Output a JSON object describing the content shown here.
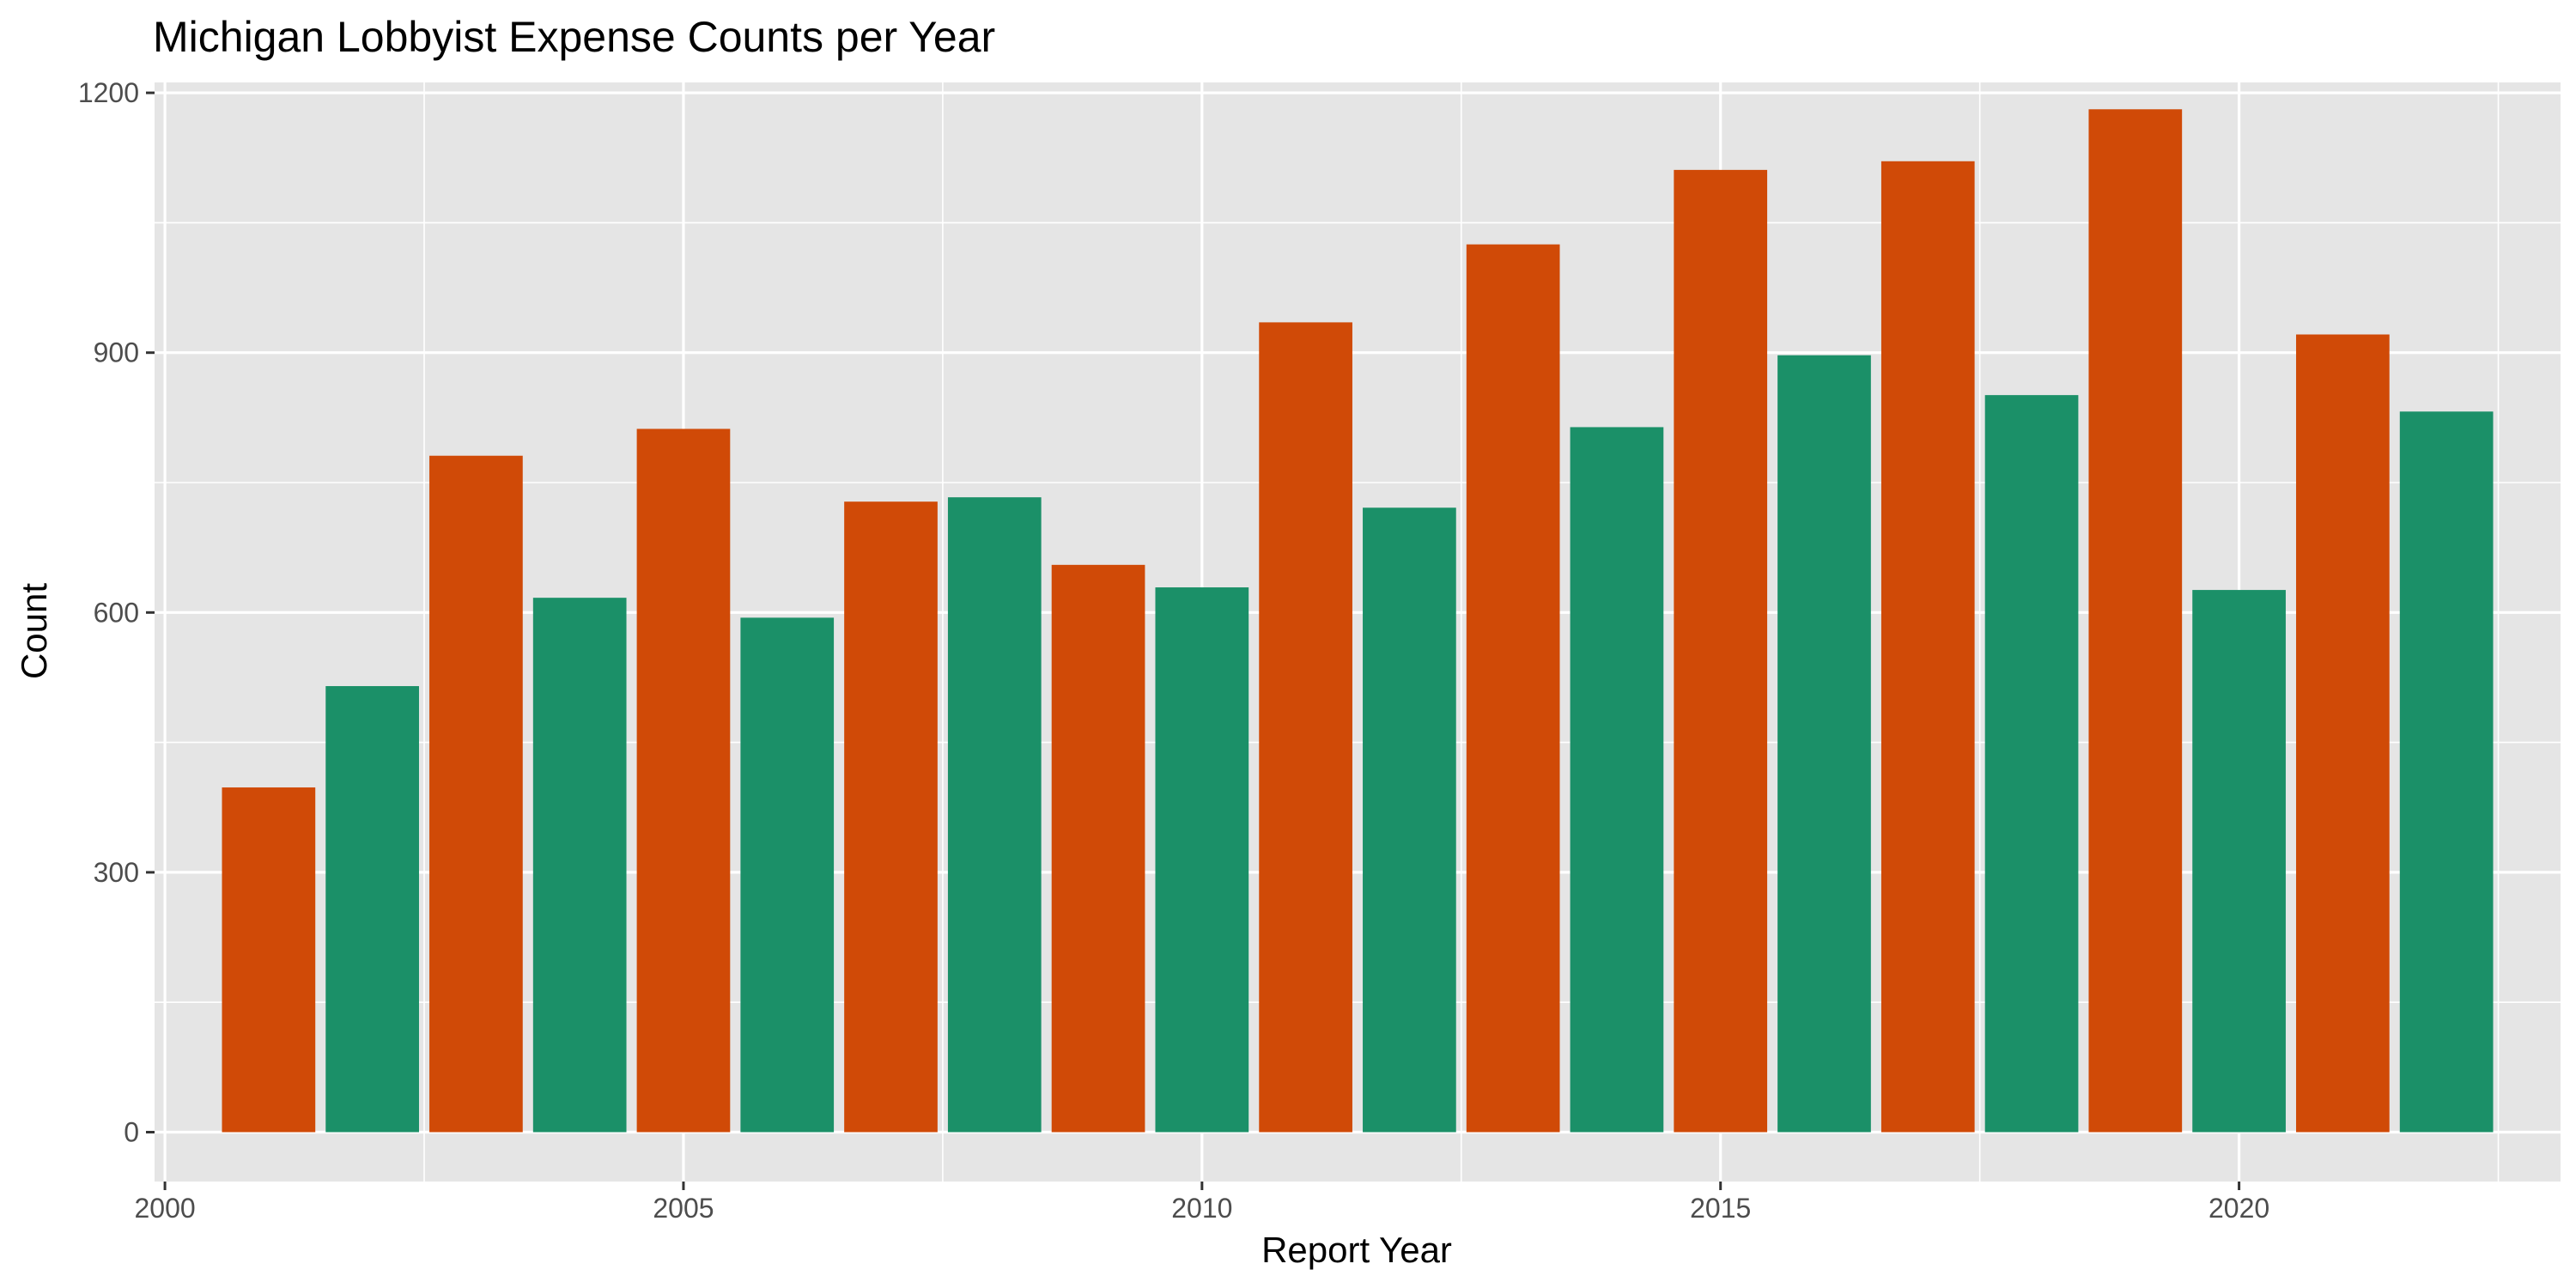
{
  "chart_data": {
    "type": "bar",
    "title": "Michigan Lobbyist Expense Counts per Year",
    "xlabel": "Report Year",
    "ylabel": "Count",
    "x": [
      2001,
      2002,
      2003,
      2004,
      2005,
      2006,
      2007,
      2008,
      2009,
      2010,
      2011,
      2012,
      2013,
      2014,
      2015,
      2016,
      2017,
      2018,
      2019,
      2020,
      2021,
      2022
    ],
    "values": [
      398,
      515,
      781,
      617,
      812,
      594,
      728,
      733,
      655,
      629,
      935,
      721,
      1025,
      814,
      1111,
      897,
      1121,
      851,
      1181,
      626,
      921,
      832
    ],
    "colors": [
      "#D04A07",
      "#1B9068",
      "#D04A07",
      "#1B9068",
      "#D04A07",
      "#1B9068",
      "#D04A07",
      "#1B9068",
      "#D04A07",
      "#1B9068",
      "#D04A07",
      "#1B9068",
      "#D04A07",
      "#1B9068",
      "#D04A07",
      "#1B9068",
      "#D04A07",
      "#1B9068",
      "#D04A07",
      "#1B9068",
      "#D04A07",
      "#1B9068"
    ],
    "xlim": [
      1999.9,
      2023.1
    ],
    "ylim": [
      -57,
      1212
    ],
    "xticks": [
      "2000",
      "2005",
      "2010",
      "2015",
      "2020"
    ],
    "yticks": [
      "0",
      "300",
      "600",
      "900",
      "1200"
    ],
    "grid": true,
    "legend": "none",
    "panel_background": "#E5E5E5",
    "grid_color": "#FFFFFF"
  }
}
